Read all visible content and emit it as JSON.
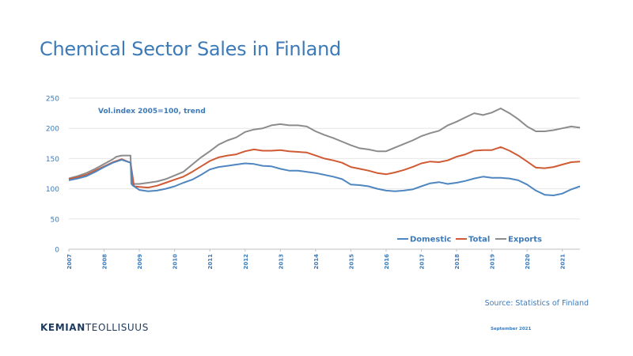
{
  "page": {
    "title": "Chemical Sector Sales in Finland",
    "source": "Source: Statistics of Finland",
    "date": "September 2021",
    "logo_bold": "KEMIAN",
    "logo_rest": "TEOLLISUUS"
  },
  "chart_data": {
    "type": "line",
    "annotation": "Vol.index 2005=100, trend",
    "ylim": [
      0,
      250
    ],
    "yticks": [
      0,
      50,
      100,
      150,
      200,
      250
    ],
    "xlim": [
      2007,
      2021.5
    ],
    "xticks": [
      "2007",
      "2008",
      "2009",
      "2010",
      "2011",
      "2012",
      "2013",
      "2014",
      "2015",
      "2016",
      "2017",
      "2018",
      "2019",
      "2020",
      "2021"
    ],
    "grid": true,
    "legend_position": "bottom-right",
    "colors": {
      "Domestic": "#4f86c0",
      "Total": "#cf5a33",
      "Exports": "#8c8c8c"
    },
    "series": [
      {
        "name": "Exports",
        "points": [
          [
            2007,
            117
          ],
          [
            2007.25,
            121
          ],
          [
            2007.5,
            126
          ],
          [
            2007.75,
            133
          ],
          [
            2008,
            141
          ],
          [
            2008.25,
            149
          ],
          [
            2008.35,
            153
          ],
          [
            2008.5,
            155
          ],
          [
            2008.75,
            155
          ],
          [
            2008.77,
            108
          ],
          [
            2009,
            108
          ],
          [
            2009.25,
            110
          ],
          [
            2009.5,
            112
          ],
          [
            2009.75,
            116
          ],
          [
            2010,
            122
          ],
          [
            2010.25,
            128
          ],
          [
            2010.5,
            140
          ],
          [
            2010.75,
            152
          ],
          [
            2011,
            162
          ],
          [
            2011.25,
            173
          ],
          [
            2011.5,
            180
          ],
          [
            2011.75,
            185
          ],
          [
            2012,
            194
          ],
          [
            2012.25,
            198
          ],
          [
            2012.5,
            200
          ],
          [
            2012.75,
            205
          ],
          [
            2013,
            207
          ],
          [
            2013.25,
            205
          ],
          [
            2013.5,
            205
          ],
          [
            2013.75,
            203
          ],
          [
            2014,
            195
          ],
          [
            2014.25,
            189
          ],
          [
            2014.5,
            184
          ],
          [
            2014.75,
            178
          ],
          [
            2015,
            172
          ],
          [
            2015.25,
            167
          ],
          [
            2015.5,
            165
          ],
          [
            2015.75,
            162
          ],
          [
            2016,
            162
          ],
          [
            2016.25,
            168
          ],
          [
            2016.5,
            174
          ],
          [
            2016.75,
            180
          ],
          [
            2017,
            187
          ],
          [
            2017.25,
            192
          ],
          [
            2017.5,
            196
          ],
          [
            2017.75,
            205
          ],
          [
            2018,
            211
          ],
          [
            2018.25,
            218
          ],
          [
            2018.5,
            225
          ],
          [
            2018.75,
            222
          ],
          [
            2019,
            226
          ],
          [
            2019.25,
            233
          ],
          [
            2019.5,
            225
          ],
          [
            2019.75,
            215
          ],
          [
            2020,
            203
          ],
          [
            2020.25,
            195
          ],
          [
            2020.5,
            195
          ],
          [
            2020.75,
            197
          ],
          [
            2021,
            200
          ],
          [
            2021.25,
            203
          ],
          [
            2021.5,
            201
          ]
        ]
      },
      {
        "name": "Total",
        "points": [
          [
            2007,
            116
          ],
          [
            2007.25,
            119
          ],
          [
            2007.5,
            123
          ],
          [
            2007.75,
            130
          ],
          [
            2008,
            137
          ],
          [
            2008.25,
            144
          ],
          [
            2008.5,
            149
          ],
          [
            2008.75,
            143
          ],
          [
            2008.85,
            104
          ],
          [
            2009,
            103
          ],
          [
            2009.25,
            102
          ],
          [
            2009.5,
            105
          ],
          [
            2009.75,
            110
          ],
          [
            2010,
            115
          ],
          [
            2010.25,
            120
          ],
          [
            2010.5,
            128
          ],
          [
            2010.75,
            137
          ],
          [
            2011,
            146
          ],
          [
            2011.25,
            152
          ],
          [
            2011.5,
            155
          ],
          [
            2011.75,
            157
          ],
          [
            2012,
            162
          ],
          [
            2012.25,
            165
          ],
          [
            2012.5,
            163
          ],
          [
            2012.75,
            163
          ],
          [
            2013,
            164
          ],
          [
            2013.25,
            162
          ],
          [
            2013.5,
            161
          ],
          [
            2013.75,
            160
          ],
          [
            2014,
            155
          ],
          [
            2014.25,
            150
          ],
          [
            2014.5,
            147
          ],
          [
            2014.75,
            143
          ],
          [
            2015,
            136
          ],
          [
            2015.25,
            133
          ],
          [
            2015.5,
            130
          ],
          [
            2015.75,
            126
          ],
          [
            2016,
            124
          ],
          [
            2016.25,
            127
          ],
          [
            2016.5,
            131
          ],
          [
            2016.75,
            136
          ],
          [
            2017,
            142
          ],
          [
            2017.25,
            145
          ],
          [
            2017.5,
            144
          ],
          [
            2017.75,
            147
          ],
          [
            2018,
            153
          ],
          [
            2018.25,
            157
          ],
          [
            2018.5,
            163
          ],
          [
            2018.75,
            164
          ],
          [
            2019,
            164
          ],
          [
            2019.25,
            169
          ],
          [
            2019.5,
            163
          ],
          [
            2019.75,
            155
          ],
          [
            2020,
            145
          ],
          [
            2020.25,
            135
          ],
          [
            2020.5,
            134
          ],
          [
            2020.75,
            136
          ],
          [
            2021,
            140
          ],
          [
            2021.25,
            144
          ],
          [
            2021.5,
            145
          ]
        ]
      },
      {
        "name": "Domestic",
        "points": [
          [
            2007,
            114
          ],
          [
            2007.25,
            117
          ],
          [
            2007.5,
            121
          ],
          [
            2007.75,
            128
          ],
          [
            2008,
            136
          ],
          [
            2008.25,
            143
          ],
          [
            2008.5,
            148
          ],
          [
            2008.75,
            143
          ],
          [
            2008.8,
            106
          ],
          [
            2009,
            98
          ],
          [
            2009.25,
            96
          ],
          [
            2009.5,
            97
          ],
          [
            2009.75,
            100
          ],
          [
            2010,
            104
          ],
          [
            2010.25,
            110
          ],
          [
            2010.5,
            115
          ],
          [
            2010.75,
            123
          ],
          [
            2011,
            132
          ],
          [
            2011.25,
            136
          ],
          [
            2011.5,
            138
          ],
          [
            2011.75,
            140
          ],
          [
            2012,
            142
          ],
          [
            2012.25,
            141
          ],
          [
            2012.5,
            138
          ],
          [
            2012.75,
            137
          ],
          [
            2013,
            133
          ],
          [
            2013.25,
            130
          ],
          [
            2013.5,
            130
          ],
          [
            2013.75,
            128
          ],
          [
            2014,
            126
          ],
          [
            2014.25,
            123
          ],
          [
            2014.5,
            120
          ],
          [
            2014.75,
            116
          ],
          [
            2015,
            107
          ],
          [
            2015.25,
            106
          ],
          [
            2015.5,
            104
          ],
          [
            2015.75,
            100
          ],
          [
            2016,
            97
          ],
          [
            2016.25,
            96
          ],
          [
            2016.5,
            97
          ],
          [
            2016.75,
            99
          ],
          [
            2017,
            104
          ],
          [
            2017.25,
            109
          ],
          [
            2017.5,
            111
          ],
          [
            2017.75,
            108
          ],
          [
            2018,
            110
          ],
          [
            2018.25,
            113
          ],
          [
            2018.5,
            117
          ],
          [
            2018.75,
            120
          ],
          [
            2019,
            118
          ],
          [
            2019.25,
            118
          ],
          [
            2019.5,
            117
          ],
          [
            2019.75,
            114
          ],
          [
            2020,
            107
          ],
          [
            2020.25,
            97
          ],
          [
            2020.5,
            90
          ],
          [
            2020.75,
            89
          ],
          [
            2021,
            92
          ],
          [
            2021.25,
            99
          ],
          [
            2021.5,
            104
          ]
        ]
      }
    ],
    "legend": [
      "Domestic",
      "Total",
      "Exports"
    ]
  }
}
